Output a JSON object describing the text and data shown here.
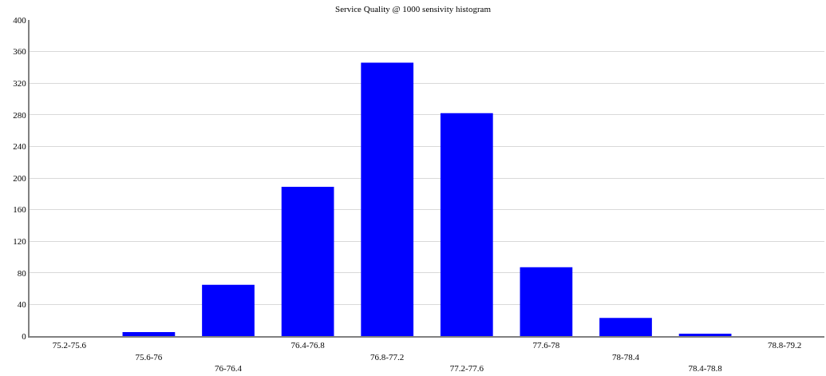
{
  "chart_data": {
    "type": "bar",
    "title": "Service Quality @ 1000 sensivity histogram",
    "categories": [
      "75.2-75.6",
      "75.6-76",
      "76-76.4",
      "76.4-76.8",
      "76.8-77.2",
      "77.2-77.6",
      "77.6-78",
      "78-78.4",
      "78.4-78.8",
      "78.8-79.2"
    ],
    "values": [
      0,
      5,
      65,
      189,
      346,
      282,
      87,
      23,
      3,
      0
    ],
    "color": "#0000ff",
    "ylim": [
      0,
      400
    ],
    "yticks": [
      0,
      40,
      80,
      120,
      160,
      200,
      240,
      280,
      320,
      360,
      400
    ],
    "grid": "y"
  }
}
